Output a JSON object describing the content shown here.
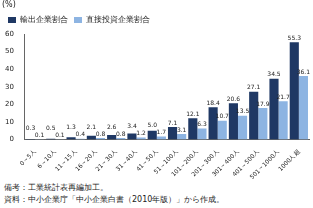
{
  "chart_data": {
    "type": "bar",
    "y_label": "(%)",
    "categories": [
      "0～5人",
      "6～10人",
      "11～15人",
      "16～20人",
      "21～30人",
      "31～40人",
      "41～50人",
      "51～100人",
      "101～200人",
      "201～300人",
      "301～400人",
      "401～500人",
      "501～1000人",
      "1000人超"
    ],
    "series": [
      {
        "name": "輸出企業割合",
        "color": "#1f3864",
        "values": [
          0.3,
          0.5,
          1.3,
          2.1,
          2.6,
          3.4,
          5.0,
          7.1,
          12.1,
          18.4,
          20.6,
          27.1,
          34.5,
          55.3
        ],
        "value_labels": [
          "0.3",
          "0.5",
          "1.3",
          "2.1",
          "2.6",
          "3.4",
          "5.0",
          "7.1",
          "12.1",
          "18.4",
          "20.6",
          "27.1",
          "34.5",
          "55.3"
        ]
      },
      {
        "name": "直接投資企業割合",
        "color": "#8db4e2",
        "values": [
          0.1,
          0.1,
          0.4,
          0.8,
          0.8,
          1.2,
          1.7,
          3.1,
          6.3,
          10.7,
          13.5,
          17.9,
          21.7,
          36.1
        ],
        "value_labels": [
          "0.1",
          "0.1",
          "0.4",
          "0.8",
          "0.8",
          "1.2",
          "1.7",
          "3.1",
          "6.3",
          "10.7",
          "13.5",
          "17.9",
          "21.7",
          "36.1"
        ]
      }
    ],
    "ylim": [
      0,
      60
    ],
    "yticks": [
      0,
      10,
      20,
      30,
      40,
      50,
      60
    ],
    "grid": false,
    "legend": "upper left",
    "data_labels": true,
    "annotations": [
      "備考：工業統計表再編加工。",
      "資料：中小企業庁「中小企業白書（2010年版）」から作成。"
    ]
  }
}
